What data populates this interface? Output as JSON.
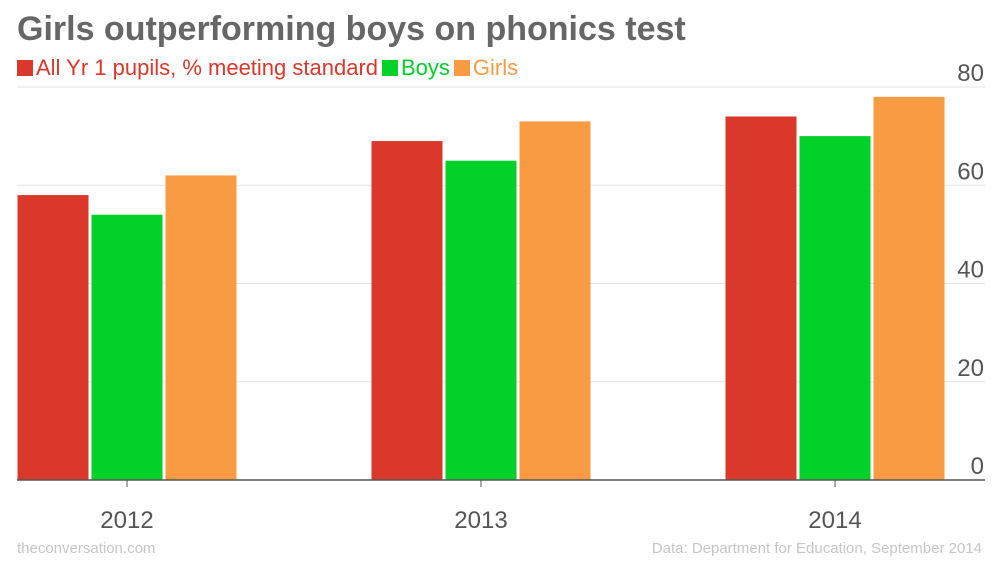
{
  "title": "Girls outperforming boys on phonics test",
  "footer": {
    "site": "theconversation.com",
    "source": "Data: Department for Education, September 2014"
  },
  "chart_data": {
    "type": "bar",
    "categories": [
      "2012",
      "2013",
      "2014"
    ],
    "series": [
      {
        "name": "All Yr 1 pupils, % meeting standard",
        "values": [
          58,
          69,
          74
        ],
        "color": "#d9382b"
      },
      {
        "name": "Boys",
        "values": [
          54,
          65,
          70
        ],
        "color": "#02d12a"
      },
      {
        "name": "Girls",
        "values": [
          62,
          73,
          78
        ],
        "color": "#f89b43"
      }
    ],
    "ylim": [
      0,
      80
    ],
    "yticks": [
      0,
      20,
      40,
      60,
      80
    ],
    "y_axis_side": "right",
    "grid": true,
    "legend_position": "top-left",
    "xlabel": "",
    "ylabel": ""
  }
}
